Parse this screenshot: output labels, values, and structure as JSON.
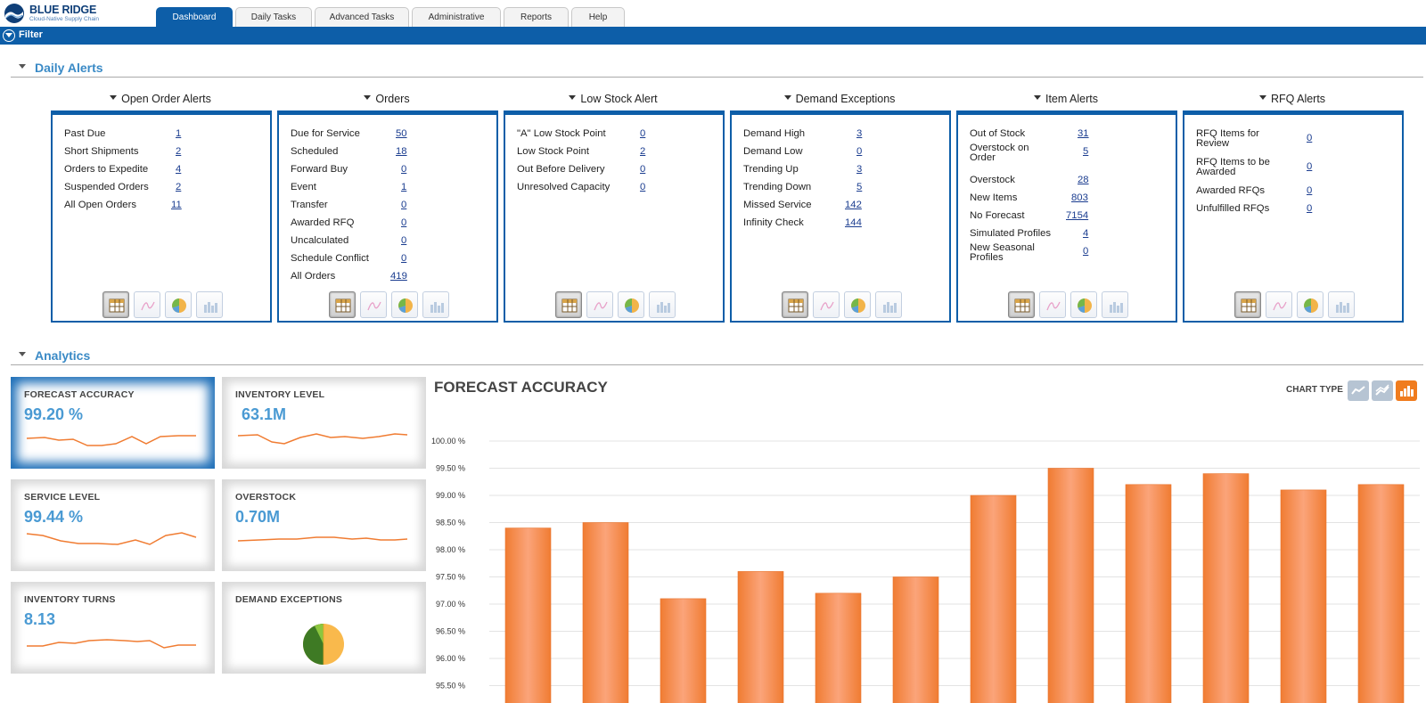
{
  "brand": {
    "name": "BLUE RIDGE",
    "tagline": "Cloud-Native Supply Chain"
  },
  "tabs": [
    {
      "label": "Dashboard",
      "active": true
    },
    {
      "label": "Daily Tasks"
    },
    {
      "label": "Advanced Tasks"
    },
    {
      "label": "Administrative"
    },
    {
      "label": "Reports"
    },
    {
      "label": "Help"
    }
  ],
  "filter": {
    "label": "Filter"
  },
  "sections": {
    "daily_alerts": "Daily Alerts",
    "analytics": "Analytics"
  },
  "alert_panels": [
    {
      "title": "Open Order Alerts",
      "rows": [
        {
          "label": "Past Due",
          "value": "1"
        },
        {
          "label": "Short Shipments",
          "value": "2"
        },
        {
          "label": "Orders to Expedite",
          "value": "4"
        },
        {
          "label": "Suspended Orders",
          "value": "2"
        },
        {
          "label": "All Open Orders",
          "value": "11"
        }
      ]
    },
    {
      "title": "Orders",
      "rows": [
        {
          "label": "Due for Service",
          "value": "50"
        },
        {
          "label": "Scheduled",
          "value": "18"
        },
        {
          "label": "Forward Buy",
          "value": "0"
        },
        {
          "label": "Event",
          "value": "1"
        },
        {
          "label": "Transfer",
          "value": "0"
        },
        {
          "label": "Awarded RFQ",
          "value": "0"
        },
        {
          "label": "Uncalculated",
          "value": "0"
        },
        {
          "label": "Schedule Conflict",
          "value": "0"
        },
        {
          "label": "All Orders",
          "value": "419"
        }
      ]
    },
    {
      "title": "Low Stock Alert",
      "rows": [
        {
          "label": "\"A\" Low Stock Point",
          "value": "0"
        },
        {
          "label": "Low Stock Point",
          "value": "2"
        },
        {
          "label": "Out Before Delivery",
          "value": "0"
        },
        {
          "label": "Unresolved Capacity",
          "value": "0"
        }
      ]
    },
    {
      "title": "Demand Exceptions",
      "rows": [
        {
          "label": "Demand High",
          "value": "3"
        },
        {
          "label": "Demand Low",
          "value": "0"
        },
        {
          "label": "Trending Up",
          "value": "3"
        },
        {
          "label": "Trending Down",
          "value": "5"
        },
        {
          "label": "Missed Service",
          "value": "142"
        },
        {
          "label": "Infinity Check",
          "value": "144"
        }
      ]
    },
    {
      "title": "Item Alerts",
      "rows": [
        {
          "label": "Out of Stock",
          "value": "31"
        },
        {
          "label": "Overstock on Order",
          "value": "5"
        },
        {
          "label": "Overstock",
          "value": "28"
        },
        {
          "label": "New Items",
          "value": "803"
        },
        {
          "label": "No Forecast",
          "value": "7154"
        },
        {
          "label": "Simulated Profiles",
          "value": "4"
        },
        {
          "label": "New Seasonal Profiles",
          "value": "0"
        }
      ]
    },
    {
      "title": "RFQ Alerts",
      "rows": [
        {
          "label": "RFQ Items for Review",
          "value": "0"
        },
        {
          "label": "RFQ Items to be Awarded",
          "value": "0"
        },
        {
          "label": "Awarded RFQs",
          "value": "0"
        },
        {
          "label": "Unfulfilled RFQs",
          "value": "0"
        }
      ]
    }
  ],
  "kpis": [
    {
      "label": "FORECAST ACCURACY",
      "value": "99.20 %",
      "active": true
    },
    {
      "label": "INVENTORY LEVEL",
      "value": "63.1M"
    },
    {
      "label": "SERVICE LEVEL",
      "value": "99.44 %"
    },
    {
      "label": "OVERSTOCK",
      "value": "0.70M"
    },
    {
      "label": "INVENTORY TURNS",
      "value": "8.13"
    },
    {
      "label": "DEMAND EXCEPTIONS",
      "value": ""
    }
  ],
  "chart_panel": {
    "title": "FORECAST ACCURACY",
    "chart_type_label": "CHART TYPE"
  },
  "colors": {
    "brand_blue": "#0d5ea8",
    "accent": "#3a8ac6",
    "bar": "#f5894a"
  },
  "chart_data": {
    "type": "bar",
    "title": "FORECAST ACCURACY",
    "categories": [
      "",
      "",
      "",
      "",
      "",
      "",
      "",
      "",
      "",
      "",
      "",
      ""
    ],
    "values": [
      98.4,
      98.5,
      97.1,
      97.6,
      97.2,
      97.5,
      99.0,
      99.5,
      99.2,
      99.4,
      99.1,
      99.2
    ],
    "yticks": [
      "100.00 %",
      "99.50 %",
      "99.00 %",
      "98.50 %",
      "98.00 %",
      "97.50 %",
      "97.00 %",
      "96.50 %",
      "96.00 %",
      "95.50 %"
    ],
    "ylim": [
      95.5,
      100
    ],
    "grid": true
  }
}
